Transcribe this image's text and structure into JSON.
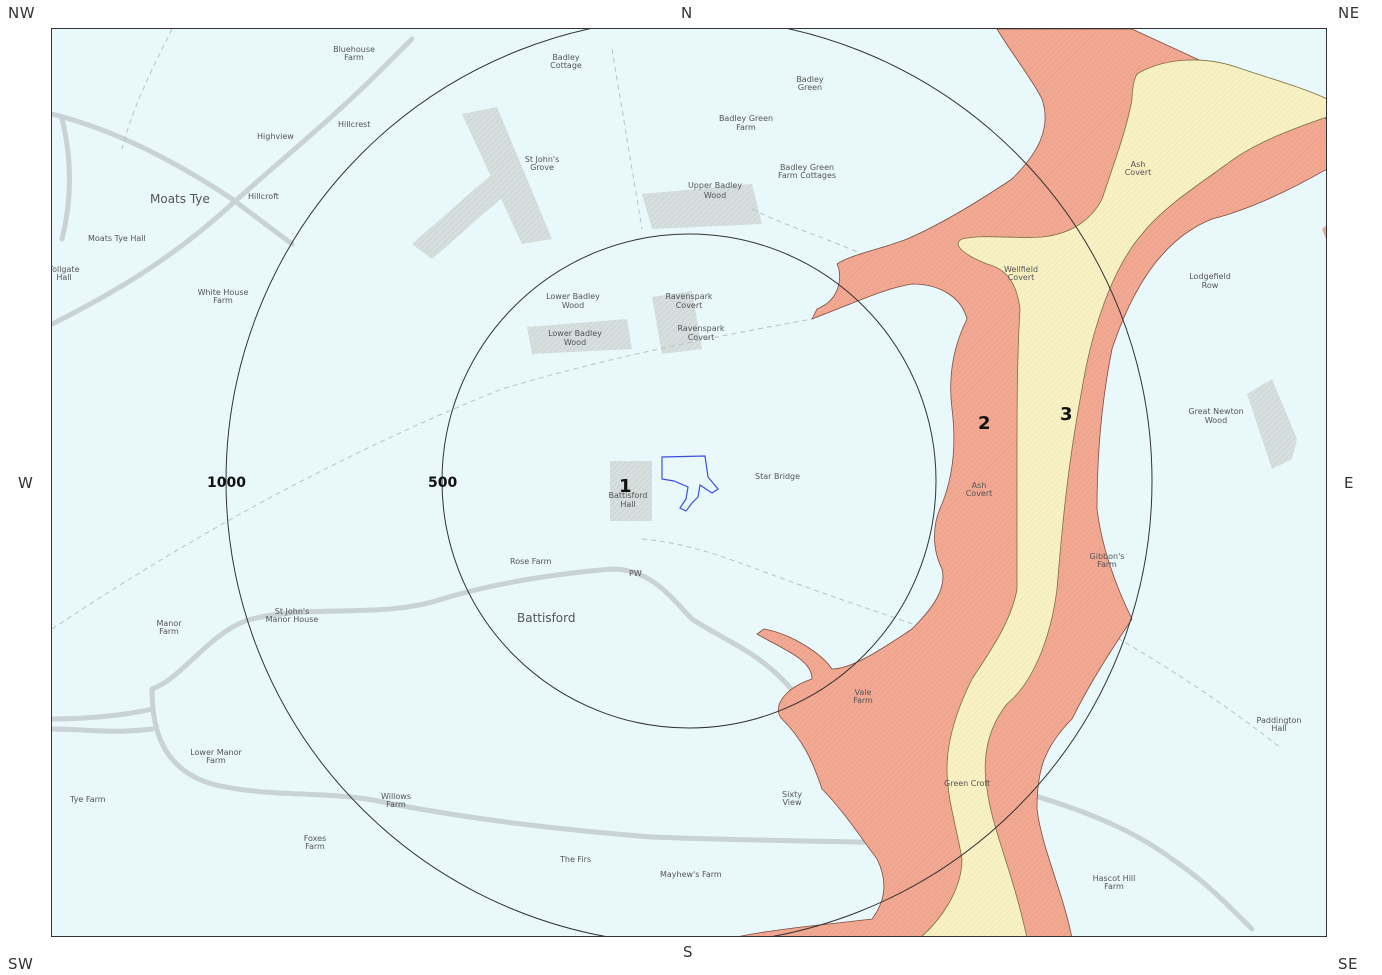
{
  "compass": {
    "nw": "NW",
    "n": "N",
    "ne": "NE",
    "w": "W",
    "e": "E",
    "sw": "SW",
    "s": "S",
    "se": "SE"
  },
  "colors": {
    "background": "#e9f8fa",
    "zone2": "#f2a993",
    "zone3": "#f8f1c4",
    "road": "#c9d2d4",
    "woodland": "#d3dcdc",
    "site_boundary": "#3d4fe0",
    "buffer_ring": "#333333"
  },
  "buffers": {
    "inner_label": "500",
    "outer_label": "1000"
  },
  "zones": {
    "site": "1",
    "zone2": "2",
    "zone3": "3"
  },
  "places": {
    "moats_tye": "Moats Tye",
    "battisford": "Battisford",
    "bluehouse_farm": [
      "Bluehouse",
      "Farm"
    ],
    "badley_cottage": [
      "Badley",
      "Cottage"
    ],
    "badley_green": [
      "Badley",
      "Green"
    ],
    "badley_green_farm": [
      "Badley Green",
      "Farm"
    ],
    "badley_green_farm_cottages": [
      "Badley Green",
      "Farm Cottages"
    ],
    "st_johns_grove": [
      "St John's",
      "Grove"
    ],
    "upper_badley_wood": [
      "Upper Badley",
      "Wood"
    ],
    "highview": "Highview",
    "hillcrest": "Hillcrest",
    "hillcroft": "Hillcroft",
    "moats_tye_hall": "Moats Tye Hall",
    "tollgate_hall": [
      "Tollgate",
      "Hall"
    ],
    "white_house_farm": [
      "White House",
      "Farm"
    ],
    "lower_badley_wood_1": [
      "Lower Badley",
      "Wood"
    ],
    "lower_badley_wood_2": [
      "Lower Badley",
      "Wood"
    ],
    "ravenspark_covert_1": [
      "Ravenspark",
      "Covert"
    ],
    "ravenspark_covert_2": [
      "Ravenspark",
      "Covert"
    ],
    "battisford_hall": [
      "Battisford",
      "Hall"
    ],
    "star_bridge": "Star Bridge",
    "rose_farm": "Rose Farm",
    "pw": "PW",
    "manor_farm": [
      "Manor",
      "Farm"
    ],
    "st_johns_manor_house": [
      "St John's",
      "Manor House"
    ],
    "lower_manor_farm": [
      "Lower Manor",
      "Farm"
    ],
    "tye_farm": "Tye Farm",
    "wellfield_covert": [
      "Wellfield",
      "Covert"
    ],
    "ash_covert_1": [
      "Ash",
      "Covert"
    ],
    "ash_covert_2": [
      "Ash",
      "Covert"
    ],
    "lodgefield_row": [
      "Lodgefield",
      "Row"
    ],
    "great_newton_wood": [
      "Great Newton",
      "Wood"
    ],
    "gibbons_farm": [
      "Gibbon's",
      "Farm"
    ],
    "vale_farm": [
      "Vale",
      "Farm"
    ],
    "paddington_hall": [
      "Paddington",
      "Hall"
    ],
    "mayhews_farm": "Mayhew's Farm",
    "foxes_farm": [
      "Foxes",
      "Farm"
    ],
    "hascot_hill_farm": [
      "Hascot Hill",
      "Farm"
    ],
    "sixty_view": [
      "Sixty",
      "View"
    ],
    "the_firs": "The Firs",
    "willows_farm": [
      "Willows",
      "Farm"
    ],
    "green_croft": "Green Croft"
  }
}
